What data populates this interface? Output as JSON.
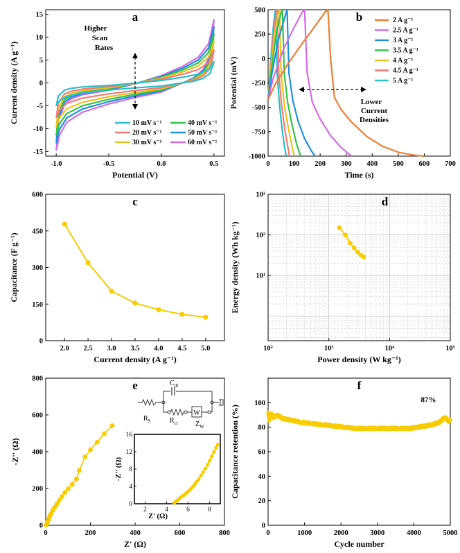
{
  "colors": {
    "gold": "#F7CC00",
    "axis": "#000000",
    "grid": "#c8c8c8"
  },
  "chart_data": [
    {
      "id": "a",
      "type": "line",
      "panel_label": "a",
      "title": "",
      "xlabel": "Potential (V)",
      "ylabel": "Current density (A g⁻¹)",
      "xlim": [
        -1.1,
        0.6
      ],
      "ylim": [
        -16,
        16
      ],
      "xticks": [
        "-1.0",
        "-0.5",
        "0.0",
        "0.5"
      ],
      "xtick_values": [
        -1.0,
        -0.5,
        0.0,
        0.5
      ],
      "yticks": [
        "-15",
        "-10",
        "-5",
        "0",
        "5",
        "10",
        "15"
      ],
      "ytick_values": [
        -15,
        -10,
        -5,
        0,
        5,
        10,
        15
      ],
      "annotation": [
        "Higher",
        "Scan",
        "Rates"
      ],
      "series": [
        {
          "name": "10 mV s⁻¹",
          "color": "#29BFCB",
          "scale": 0.34
        },
        {
          "name": "20 mV s⁻¹",
          "color": "#F27C74",
          "scale": 0.52
        },
        {
          "name": "30 mV s⁻¹",
          "color": "#E8C21F",
          "scale": 0.66
        },
        {
          "name": "40 mV s⁻¹",
          "color": "#34C24A",
          "scale": 0.78
        },
        {
          "name": "50 mV s⁻¹",
          "color": "#1F8FE0",
          "scale": 0.89
        },
        {
          "name": "60 mV s⁻¹",
          "color": "#D56BE8",
          "scale": 1.0
        }
      ],
      "base_curve": {
        "upper": [
          [
            -1.0,
            -14.8
          ],
          [
            -0.98,
            -8.5
          ],
          [
            -0.92,
            -4.6
          ],
          [
            -0.85,
            -3.4
          ],
          [
            -0.75,
            -2.6
          ],
          [
            -0.5,
            -1.6
          ],
          [
            -0.25,
            -0.2
          ],
          [
            0.0,
            1.6
          ],
          [
            0.2,
            3.6
          ],
          [
            0.35,
            5.6
          ],
          [
            0.45,
            8.6
          ],
          [
            0.5,
            13.8
          ]
        ],
        "lower": [
          [
            0.5,
            13.8
          ],
          [
            0.49,
            11.0
          ],
          [
            0.46,
            6.0
          ],
          [
            0.4,
            3.0
          ],
          [
            0.3,
            1.0
          ],
          [
            0.0,
            -2.0
          ],
          [
            -0.25,
            -3.2
          ],
          [
            -0.5,
            -4.6
          ],
          [
            -0.75,
            -6.4
          ],
          [
            -0.9,
            -8.6
          ],
          [
            -0.97,
            -11.5
          ],
          [
            -1.0,
            -14.8
          ]
        ]
      }
    },
    {
      "id": "b",
      "type": "line",
      "panel_label": "b",
      "title": "",
      "xlabel": "Time (s)",
      "ylabel": "Potential (mV)",
      "xlim": [
        0,
        700
      ],
      "ylim": [
        -1000,
        500
      ],
      "xticks": [
        "0",
        "100",
        "200",
        "300",
        "400",
        "500",
        "600",
        "700"
      ],
      "xtick_values": [
        0,
        100,
        200,
        300,
        400,
        500,
        600,
        700
      ],
      "yticks": [
        "-1000",
        "-750",
        "-500",
        "-250",
        "0",
        "250",
        "500"
      ],
      "ytick_values": [
        -1000,
        -750,
        -500,
        -250,
        0,
        250,
        500
      ],
      "annotation": [
        "Lower",
        "Current",
        "Densities"
      ],
      "series": [
        {
          "name": "2 A g⁻¹",
          "color": "#EE7E32",
          "x": [
            0,
            30,
            80,
            130,
            180,
            220,
            230,
            240,
            255,
            280,
            320,
            380,
            440,
            500,
            560,
            600
          ],
          "y": [
            -420,
            -250,
            -40,
            150,
            330,
            480,
            500,
            0,
            -400,
            -520,
            -650,
            -800,
            -900,
            -960,
            -990,
            -1000
          ]
        },
        {
          "name": "2.5 A g⁻¹",
          "color": "#D56BE8",
          "x": [
            0,
            20,
            60,
            100,
            130,
            140,
            150,
            170,
            200,
            240,
            280,
            320
          ],
          "y": [
            -420,
            -200,
            100,
            320,
            470,
            500,
            -150,
            -450,
            -620,
            -790,
            -910,
            -1000
          ]
        },
        {
          "name": "3 A g⁻¹",
          "color": "#1F8FE0",
          "x": [
            0,
            15,
            40,
            65,
            73,
            80,
            95,
            115,
            140,
            165,
            180
          ],
          "y": [
            -420,
            -150,
            200,
            430,
            500,
            -150,
            -430,
            -640,
            -820,
            -940,
            -1000
          ]
        },
        {
          "name": "3.5 A g⁻¹",
          "color": "#34C24A",
          "x": [
            0,
            12,
            30,
            48,
            55,
            62,
            75,
            92,
            110,
            125
          ],
          "y": [
            -420,
            -130,
            230,
            450,
            500,
            -150,
            -450,
            -680,
            -880,
            -1000
          ]
        },
        {
          "name": "4 A g⁻¹",
          "color": "#E8C21F",
          "x": [
            0,
            10,
            25,
            38,
            44,
            50,
            62,
            77,
            92,
            100
          ],
          "y": [
            -420,
            -120,
            250,
            460,
            500,
            -150,
            -470,
            -700,
            -900,
            -1000
          ]
        },
        {
          "name": "4.5 A g⁻¹",
          "color": "#F27C74",
          "x": [
            0,
            9,
            21,
            31,
            36,
            41,
            52,
            64,
            76,
            82
          ],
          "y": [
            -420,
            -110,
            260,
            470,
            500,
            -150,
            -480,
            -720,
            -910,
            -1000
          ]
        },
        {
          "name": "5 A g⁻¹",
          "color": "#29BFCB",
          "x": [
            0,
            8,
            18,
            26,
            30,
            35,
            44,
            54,
            64,
            70
          ],
          "y": [
            -420,
            -100,
            270,
            470,
            500,
            -150,
            -480,
            -730,
            -920,
            -1000
          ]
        }
      ]
    },
    {
      "id": "c",
      "type": "line",
      "panel_label": "c",
      "title": "",
      "xlabel": "Current density (A g⁻¹)",
      "ylabel": "Capacitance (F g⁻¹)",
      "xlim": [
        1.6,
        5.4
      ],
      "ylim": [
        0,
        600
      ],
      "xticks": [
        "2.0",
        "2.5",
        "3.0",
        "3.5",
        "4.0",
        "4.5",
        "5.0"
      ],
      "xtick_values": [
        2.0,
        2.5,
        3.0,
        3.5,
        4.0,
        4.5,
        5.0
      ],
      "yticks": [
        "0",
        "150",
        "300",
        "450",
        "600"
      ],
      "ytick_values": [
        0,
        150,
        300,
        450,
        600
      ],
      "series": [
        {
          "name": "Capacitance",
          "color": "#F7CC00",
          "x": [
            2.0,
            2.5,
            3.0,
            3.5,
            4.0,
            4.5,
            5.0
          ],
          "y": [
            478,
            319,
            203,
            154,
            127,
            108,
            96
          ]
        }
      ]
    },
    {
      "id": "d",
      "type": "scatter",
      "panel_label": "d",
      "title": "",
      "xlabel": "Power density (W kg⁻¹)",
      "ylabel": "Energy density (Wh kg⁻¹)",
      "scale": "log",
      "xlim": [
        100,
        100000
      ],
      "ylim": [
        0.25,
        1000
      ],
      "xticks": [
        "10²",
        "10³",
        "10⁴",
        "10⁵"
      ],
      "xtick_values": [
        100,
        1000,
        10000,
        100000
      ],
      "yticks": [
        "10¹",
        "10²",
        "10³"
      ],
      "ytick_values": [
        10,
        100,
        1000
      ],
      "grid": true,
      "series": [
        {
          "name": "Ragone",
          "color": "#F7CC00",
          "x": [
            1500,
            1870,
            2240,
            2610,
            2990,
            3360,
            3740
          ],
          "y": [
            150,
            100,
            63,
            48,
            38,
            32,
            29
          ]
        }
      ]
    },
    {
      "id": "e",
      "type": "scatter",
      "panel_label": "e",
      "title": "",
      "xlabel": "Z' (Ω)",
      "ylabel": "-Z'' (Ω)",
      "xlim": [
        0,
        800
      ],
      "ylim": [
        0,
        800
      ],
      "xticks": [
        "0",
        "200",
        "400",
        "600",
        "800"
      ],
      "xtick_values": [
        0,
        200,
        400,
        600,
        800
      ],
      "yticks": [
        "0",
        "200",
        "400",
        "600",
        "800"
      ],
      "ytick_values": [
        0,
        200,
        400,
        600,
        800
      ],
      "series": [
        {
          "name": "Nyquist",
          "color": "#F7CC00",
          "x": [
            2,
            5,
            8,
            12,
            16,
            20,
            26,
            32,
            40,
            50,
            60,
            72,
            86,
            100,
            118,
            138,
            150,
            176,
            200,
            230,
            262,
            298
          ],
          "y": [
            1,
            8,
            18,
            30,
            42,
            55,
            68,
            82,
            98,
            116,
            134,
            156,
            178,
            198,
            222,
            252,
            298,
            372,
            410,
            452,
            498,
            542
          ]
        }
      ],
      "circuit_labels": {
        "cdl": "C",
        "cdl_sub": "dl",
        "rs": "R",
        "rs_sub": "S",
        "rct": "R",
        "rct_sub": "ct",
        "zw": "Z",
        "zw_sub": "W",
        "w": "W"
      },
      "inset": {
        "xlabel": "Z' (Ω)",
        "ylabel": "-Z'' (Ω)",
        "xlim": [
          1,
          9
        ],
        "ylim": [
          0,
          16
        ],
        "xticks": [
          "2",
          "4",
          "6",
          "8"
        ],
        "xtick_values": [
          2,
          4,
          6,
          8
        ],
        "yticks": [
          "0",
          "4",
          "8",
          "12",
          "16"
        ],
        "ytick_values": [
          0,
          4,
          8,
          12,
          16
        ],
        "x": [
          4.7,
          4.8,
          4.9,
          5.0,
          5.1,
          5.2,
          5.3,
          5.45,
          5.6,
          5.75,
          5.9,
          6.05,
          6.2,
          6.35,
          6.5,
          6.65,
          6.8,
          7.0,
          7.2,
          7.4,
          7.6,
          7.8,
          8.0,
          8.2,
          8.4,
          8.6,
          8.75
        ],
        "y": [
          0.2,
          0.4,
          0.6,
          0.8,
          1.0,
          1.2,
          1.45,
          1.7,
          2.0,
          2.3,
          2.6,
          2.95,
          3.3,
          3.7,
          4.1,
          4.6,
          5.1,
          5.7,
          6.5,
          7.3,
          8.1,
          9.0,
          9.9,
          10.9,
          11.9,
          12.9,
          13.6
        ]
      }
    },
    {
      "id": "f",
      "type": "line",
      "panel_label": "f",
      "title": "",
      "xlabel": "Cycle number",
      "ylabel": "Capacitance retention (%)",
      "xlim": [
        0,
        5000
      ],
      "ylim": [
        0,
        120
      ],
      "xticks": [
        "0",
        "1000",
        "2000",
        "3000",
        "4000",
        "5000"
      ],
      "xtick_values": [
        0,
        1000,
        2000,
        3000,
        4000,
        5000
      ],
      "yticks": [
        "0",
        "20",
        "40",
        "60",
        "80",
        "100"
      ],
      "ytick_values": [
        0,
        20,
        40,
        60,
        80,
        100
      ],
      "annotation": "87%",
      "series": [
        {
          "name": "Retention",
          "color": "#F7CC00",
          "x": [
            0,
            30,
            80,
            150,
            250,
            400,
            600,
            900,
            1200,
            1500,
            1800,
            2100,
            2400,
            2700,
            3000,
            3300,
            3600,
            3900,
            4100,
            4300,
            4500,
            4700,
            4850,
            4950,
            5000
          ],
          "y": [
            92,
            86,
            91,
            88,
            90,
            87,
            86,
            84,
            83,
            82,
            81,
            80,
            79,
            79,
            79,
            79,
            79,
            79,
            80,
            81,
            82,
            84,
            88,
            85,
            86
          ]
        }
      ]
    }
  ]
}
